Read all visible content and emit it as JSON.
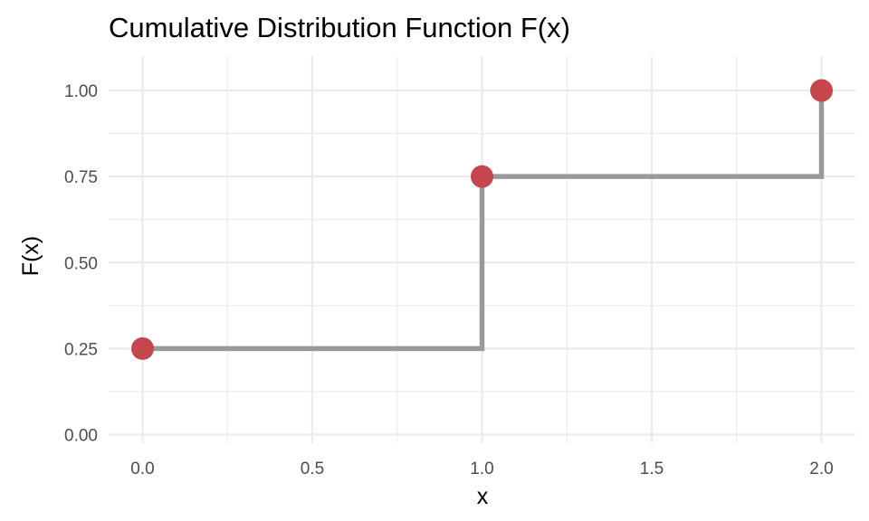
{
  "chart_data": {
    "type": "line",
    "title": "Cumulative Distribution Function F(x)",
    "xlabel": "x",
    "ylabel": "F(x)",
    "xlim": [
      -0.1,
      2.1
    ],
    "ylim": [
      -0.025,
      1.1
    ],
    "x_ticks": [
      0.0,
      0.5,
      1.0,
      1.5,
      2.0
    ],
    "x_tick_labels": [
      "0.0",
      "0.5",
      "1.0",
      "1.5",
      "2.0"
    ],
    "y_ticks": [
      0.0,
      0.25,
      0.5,
      0.75,
      1.0
    ],
    "y_tick_labels": [
      "0.00",
      "0.25",
      "0.50",
      "0.75",
      "1.00"
    ],
    "grid": true,
    "legend": "none",
    "series": [
      {
        "kind": "step",
        "color": "#999999",
        "x": [
          0,
          1,
          2
        ],
        "y": [
          0.25,
          0.75,
          1.0
        ]
      },
      {
        "kind": "points",
        "color": "#c5474d",
        "x": [
          0,
          1,
          2
        ],
        "y": [
          0.25,
          0.75,
          1.0
        ]
      }
    ]
  }
}
